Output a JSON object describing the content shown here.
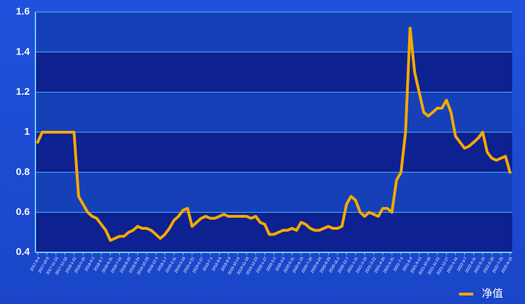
{
  "chart_data": {
    "type": "line",
    "categories": [
      "2017-9-4",
      null,
      "2017-10-9",
      null,
      "2017-11-13",
      null,
      "2017-12-18",
      null,
      "2018-1-22",
      null,
      "2018-2-26",
      null,
      "2018-4-2",
      null,
      "2018-5-7",
      null,
      "2018-6-11",
      null,
      "2018-7-16",
      null,
      "2018-8-20",
      null,
      "2018-9-24",
      null,
      "2018-10-29",
      null,
      "2018-12-3",
      null,
      "2019-1-7",
      null,
      "2019-2-11",
      null,
      "2019-3-18",
      null,
      "2019-4-22",
      null,
      "2019-5-27",
      null,
      "2019-7-1",
      null,
      "2019-8-5",
      null,
      "2019-9-9",
      null,
      "2019-10-14",
      null,
      "2019-11-18",
      null,
      "2019-12-23",
      null,
      "2020-1-27",
      null,
      "2020-3-2",
      null,
      "2020-4-6",
      null,
      "2020-5-11",
      null,
      "2020-6-15",
      null,
      "2020-7-20",
      null,
      "2020-8-24",
      null,
      "2020-9-28",
      null,
      "2020-11-2",
      null,
      "2020-12-7",
      null,
      "2021-1-11",
      null,
      "2021-2-15",
      null,
      "2021-3-22",
      null,
      "2021-4-26",
      null,
      "2021-5-31",
      null,
      "2021-7-5",
      null,
      "2021-8-9",
      null,
      "2021-9-13",
      null,
      "2021-10-18",
      null,
      "2021-11-22",
      null,
      "2021-12-27",
      null,
      "2022-1-31",
      null,
      "2022-3-7",
      null,
      "2022-4-11",
      null,
      "2022-5-16",
      null,
      "2022-6-20",
      null,
      "2022-7-25",
      null,
      "2022-8-15"
    ],
    "series": [
      {
        "name": "净值",
        "color": "#f5a800",
        "values": [
          0.95,
          1.0,
          1.0,
          1.0,
          1.0,
          1.0,
          1.0,
          1.0,
          1.0,
          0.68,
          0.64,
          0.6,
          0.58,
          0.57,
          0.54,
          0.51,
          0.46,
          0.47,
          0.48,
          0.48,
          0.5,
          0.51,
          0.53,
          0.52,
          0.52,
          0.51,
          0.49,
          0.47,
          0.49,
          0.52,
          0.56,
          0.58,
          0.61,
          0.62,
          0.53,
          0.55,
          0.57,
          0.58,
          0.57,
          0.57,
          0.58,
          0.59,
          0.58,
          0.58,
          0.58,
          0.58,
          0.58,
          0.57,
          0.58,
          0.55,
          0.54,
          0.49,
          0.49,
          0.5,
          0.51,
          0.51,
          0.52,
          0.51,
          0.55,
          0.54,
          0.52,
          0.51,
          0.51,
          0.52,
          0.53,
          0.52,
          0.52,
          0.53,
          0.64,
          0.68,
          0.66,
          0.6,
          0.58,
          0.6,
          0.59,
          0.58,
          0.62,
          0.62,
          0.6,
          0.76,
          0.8,
          1.0,
          1.52,
          1.3,
          1.2,
          1.1,
          1.08,
          1.1,
          1.12,
          1.12,
          1.16,
          1.1,
          0.98,
          0.95,
          0.92,
          0.93,
          0.95,
          0.97,
          1.0,
          0.9,
          0.87,
          0.86,
          0.87,
          0.88,
          0.8
        ]
      }
    ],
    "ylim": [
      0.4,
      1.6
    ],
    "yticks": [
      0.4,
      0.6,
      0.8,
      1,
      1.2,
      1.4,
      1.6
    ],
    "grid": true,
    "legend": "bottom-right"
  }
}
